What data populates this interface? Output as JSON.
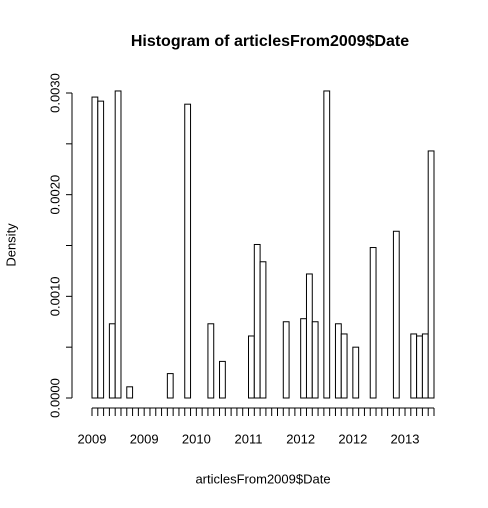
{
  "chart_data": {
    "type": "histogram",
    "title": "Histogram of articlesFrom2009$Date",
    "x_label": "articlesFrom2009$Date",
    "y_label": "Density",
    "bins": [
      0,
      1,
      2,
      3,
      4,
      5,
      6,
      7,
      8,
      9,
      10,
      11,
      12,
      13,
      14,
      15,
      16,
      17,
      18,
      19,
      20,
      21,
      22,
      23,
      24,
      25,
      26,
      27,
      28,
      29,
      30,
      31,
      32,
      33,
      34,
      35,
      36,
      37,
      38,
      39,
      40,
      41,
      42,
      43,
      44,
      45,
      46,
      47,
      48,
      49,
      50,
      51,
      52,
      53,
      54,
      55,
      56,
      57,
      58,
      59
    ],
    "values": [
      0.00296,
      0.00292,
      0,
      0.00073,
      0.00302,
      0,
      0.00011,
      0,
      0,
      0,
      0,
      0,
      0,
      0.00024,
      0,
      0,
      0.00289,
      0,
      0,
      0,
      0.00073,
      0,
      0.00036,
      0,
      0,
      0,
      0,
      0.00061,
      0.00151,
      0.00134,
      0,
      0,
      0,
      0.00075,
      0,
      0,
      0.00078,
      0.00122,
      0.00075,
      0,
      0.00302,
      0,
      0.00073,
      0.00063,
      0,
      0.0005,
      0,
      0,
      0.00148,
      0,
      0,
      0,
      0.00164,
      0,
      0,
      0.00063,
      0.00061,
      0.00063,
      0.00243
    ],
    "xlim": [
      0,
      59
    ],
    "xticks": [
      {
        "value": 0,
        "label": "2009"
      },
      {
        "value": 9,
        "label": "2009"
      },
      {
        "value": 18,
        "label": "2010"
      },
      {
        "value": 27,
        "label": "2011"
      },
      {
        "value": 36,
        "label": "2012"
      },
      {
        "value": 45,
        "label": "2012"
      },
      {
        "value": 54,
        "label": "2013"
      }
    ],
    "ylim": [
      0,
      0.003
    ],
    "yticks": [
      {
        "value": 0,
        "label": "0.0000"
      },
      {
        "value": 0.0005,
        "label": null
      },
      {
        "value": 0.001,
        "label": "0.0010"
      },
      {
        "value": 0.0015,
        "label": null
      },
      {
        "value": 0.002,
        "label": "0.0020"
      },
      {
        "value": 0.0025,
        "label": null
      },
      {
        "value": 0.003,
        "label": "0.0030"
      }
    ],
    "color": "#ffffff"
  }
}
